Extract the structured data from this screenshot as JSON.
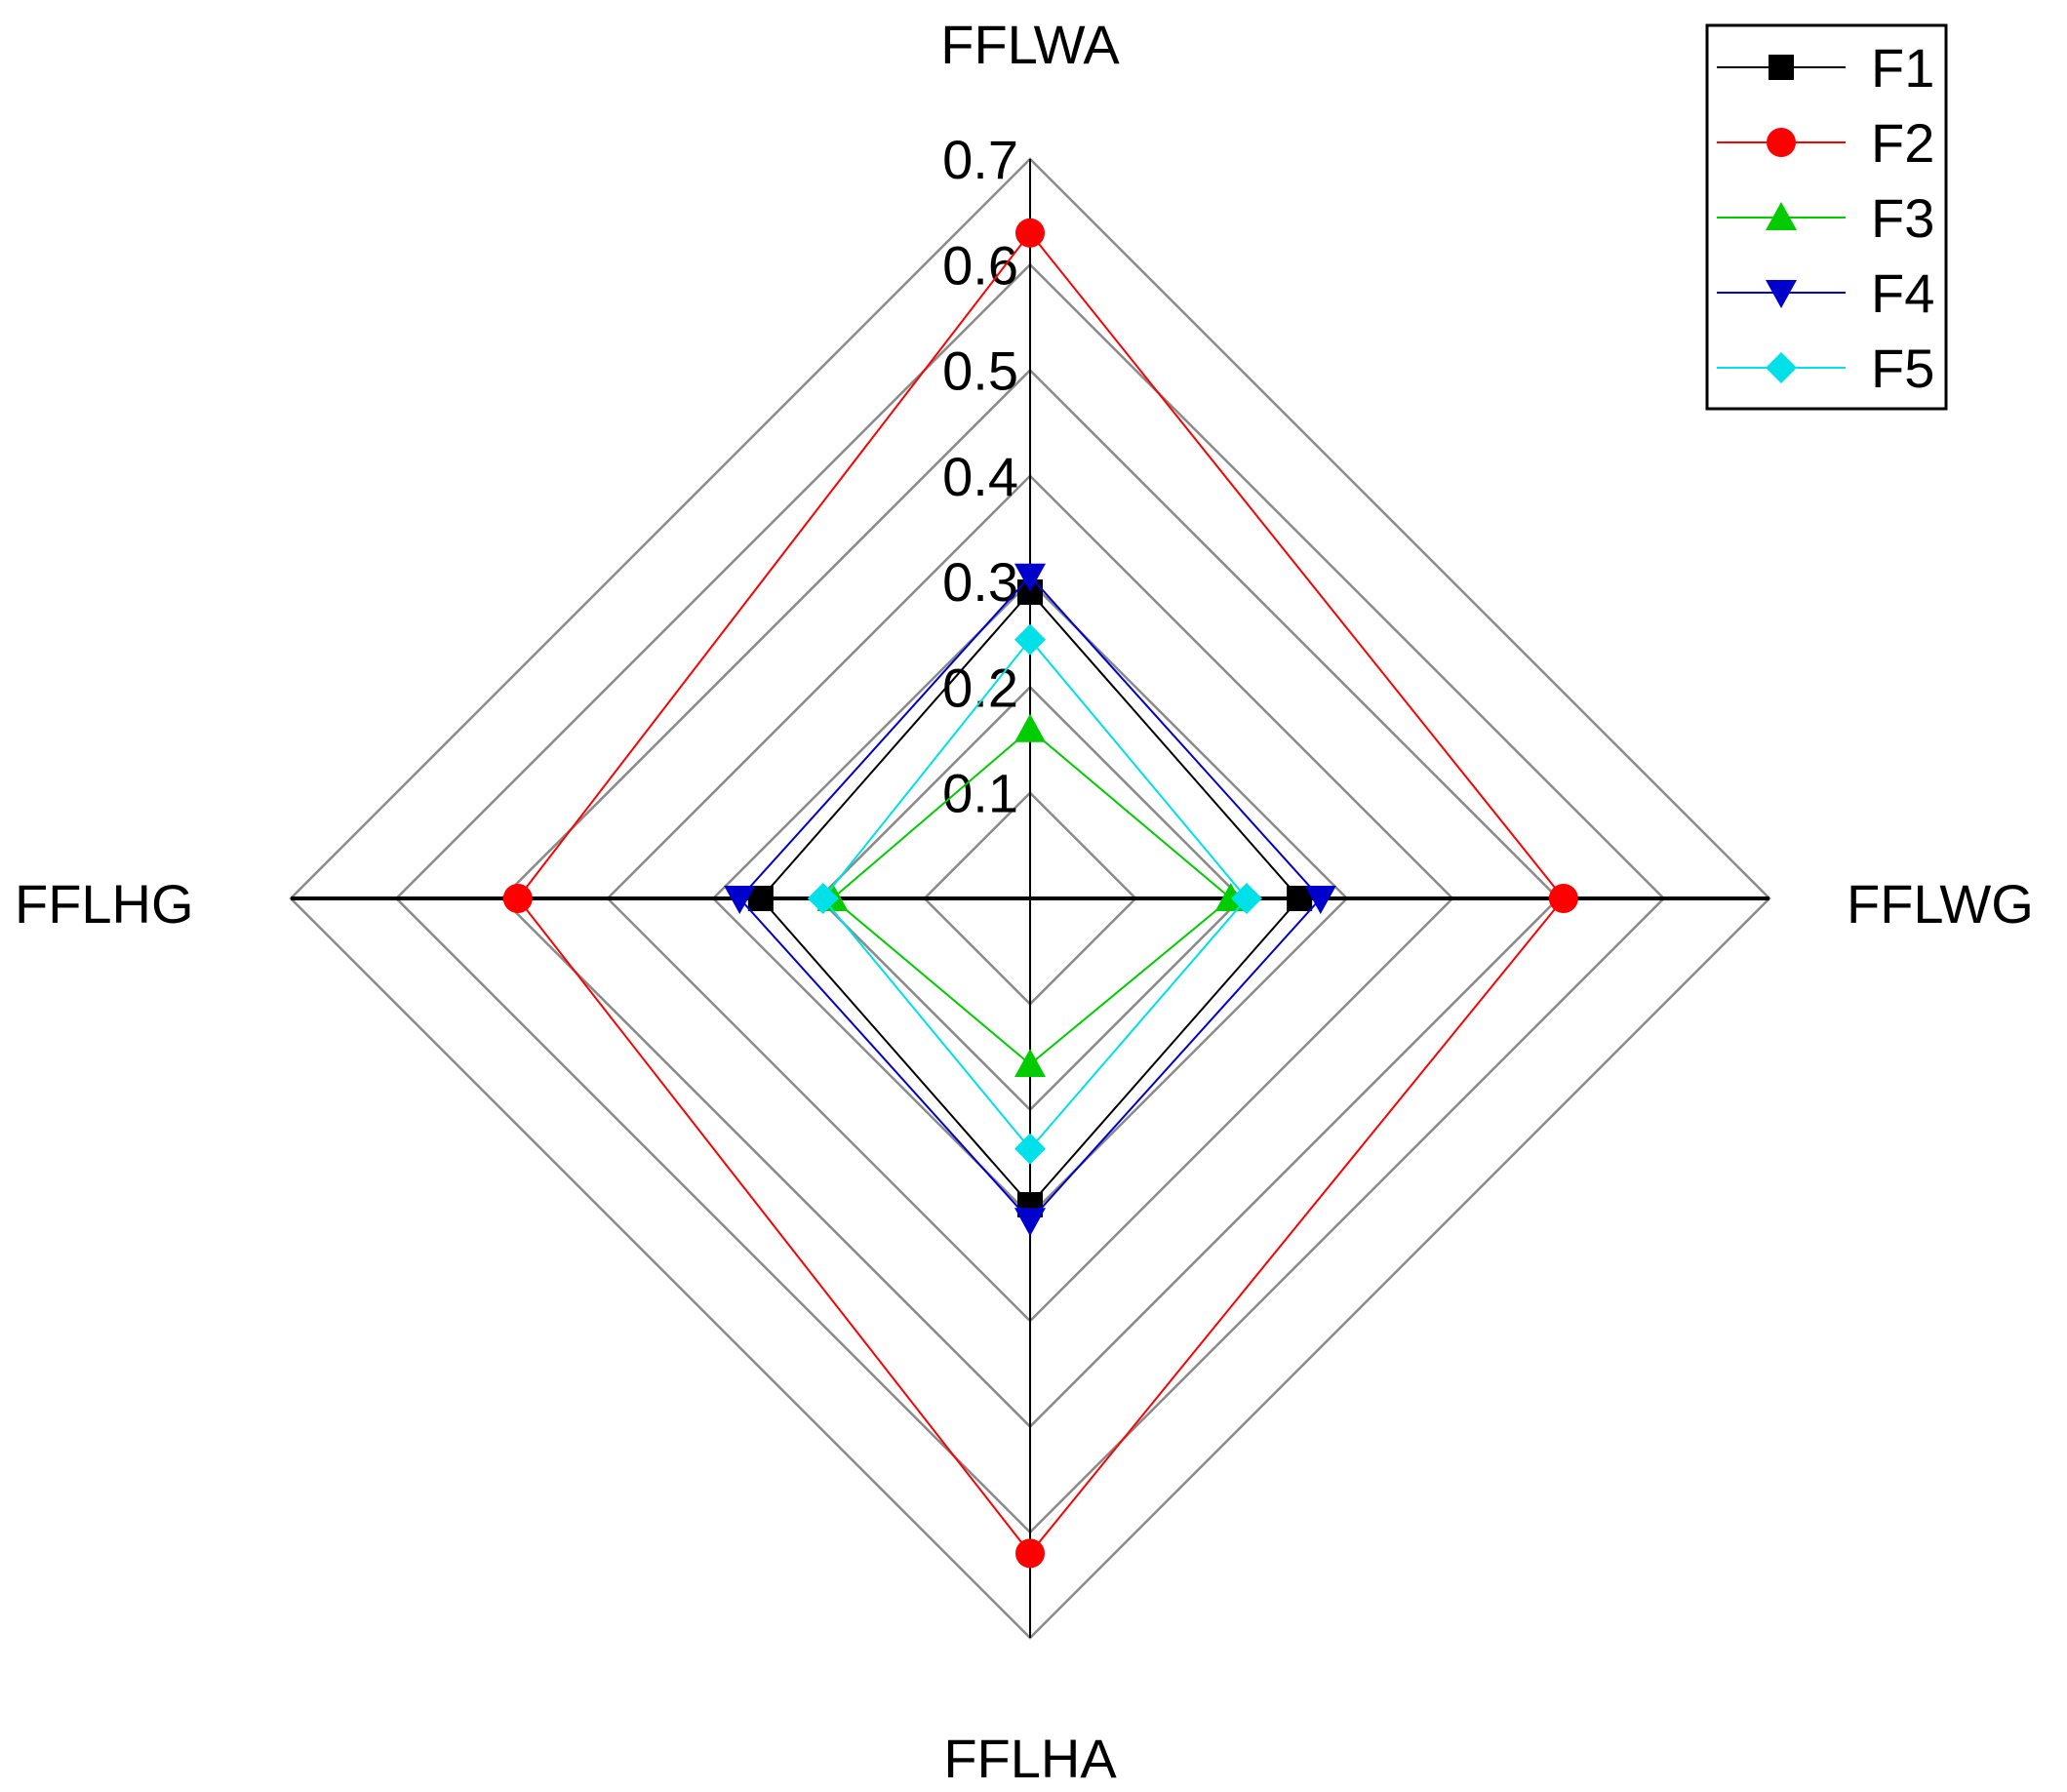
{
  "chart_data": {
    "type": "radar",
    "title": "",
    "axes": [
      "FFLWA",
      "FFLWG",
      "FFLHA",
      "FFLHG"
    ],
    "range": [
      0,
      0.7
    ],
    "ticks": [
      "0.1",
      "0.2",
      "0.3",
      "0.4",
      "0.5",
      "0.6",
      "0.7"
    ],
    "tick_values": [
      0.1,
      0.2,
      0.3,
      0.4,
      0.5,
      0.6,
      0.7
    ],
    "grid": true,
    "legend_position": "top-right",
    "series": [
      {
        "name": "F1",
        "color": "#000000",
        "marker": "square",
        "values": [
          0.29,
          0.255,
          0.29,
          0.255
        ]
      },
      {
        "name": "F2",
        "color": "#ff0000",
        "marker": "circle",
        "values": [
          0.63,
          0.505,
          0.62,
          0.485
        ]
      },
      {
        "name": "F3",
        "color": "#00cc00",
        "marker": "triangle-up",
        "values": [
          0.16,
          0.19,
          0.157,
          0.187
        ]
      },
      {
        "name": "F4",
        "color": "#0000cc",
        "marker": "triangle-down",
        "values": [
          0.305,
          0.275,
          0.305,
          0.275
        ]
      },
      {
        "name": "F5",
        "color": "#00e0e8",
        "marker": "diamond",
        "values": [
          0.245,
          0.205,
          0.237,
          0.196
        ]
      }
    ]
  }
}
